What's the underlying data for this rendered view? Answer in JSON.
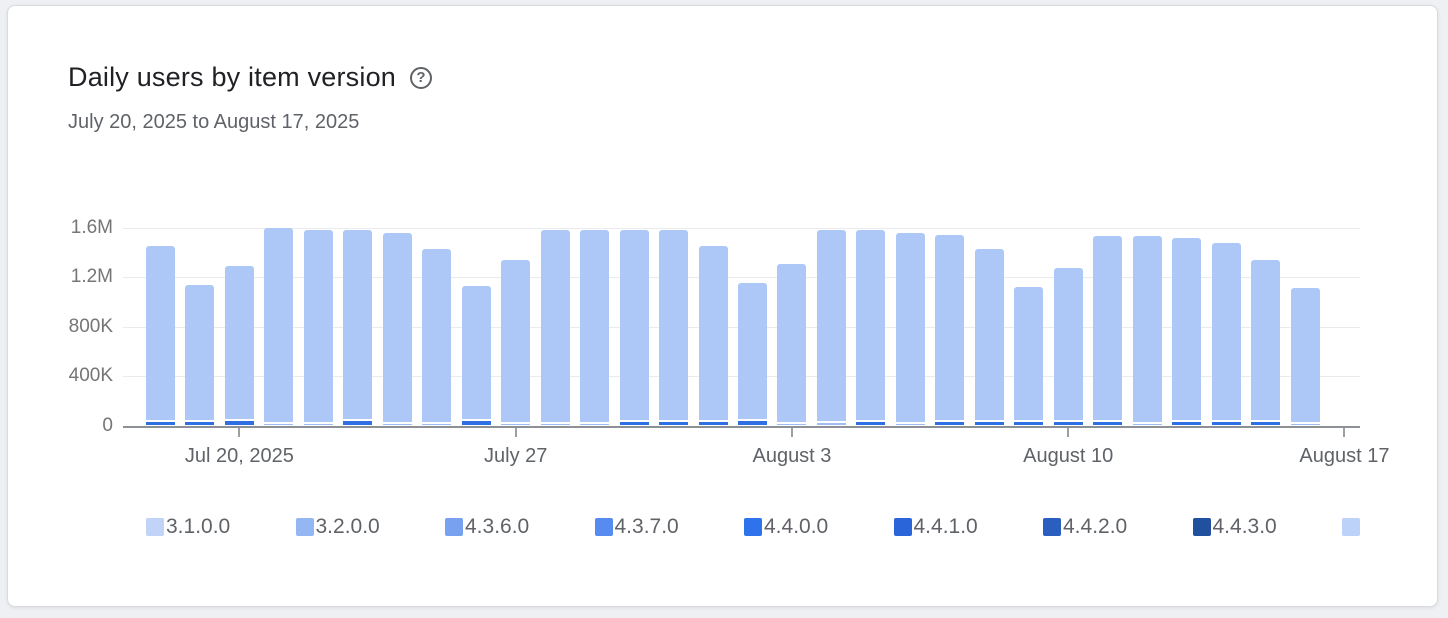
{
  "header": {
    "title": "Daily users by item version",
    "help_icon": "?",
    "subtitle": "July 20, 2025 to August 17, 2025"
  },
  "chart_data": {
    "type": "bar",
    "stacked": true,
    "title": "Daily users by item version",
    "subtitle": "July 20, 2025 to August 17, 2025",
    "ylabel": "",
    "xlabel": "",
    "ylim": [
      0,
      1600000
    ],
    "grid": true,
    "y_ticks": [
      {
        "label": "1.6M",
        "value": 1600000
      },
      {
        "label": "1.2M",
        "value": 1200000
      },
      {
        "label": "800K",
        "value": 800000
      },
      {
        "label": "400K",
        "value": 400000
      },
      {
        "label": "0",
        "value": 0
      }
    ],
    "x_ticks": [
      {
        "label": "Jul 20, 2025",
        "day_index": 2
      },
      {
        "label": "July 27",
        "day_index": 9
      },
      {
        "label": "August 3",
        "day_index": 16
      },
      {
        "label": "August 10",
        "day_index": 23
      },
      {
        "label": "August 17",
        "day_index": 30
      }
    ],
    "legend_position": "bottom",
    "legend": [
      {
        "label": "3.1.0.0",
        "color": "#c1d4f8"
      },
      {
        "label": "3.2.0.0",
        "color": "#94b7f4"
      },
      {
        "label": "4.3.6.0",
        "color": "#78a2f0"
      },
      {
        "label": "4.3.7.0",
        "color": "#568cf0"
      },
      {
        "label": "4.4.0.0",
        "color": "#2e73eb"
      },
      {
        "label": "4.4.1.0",
        "color": "#2a66d9"
      },
      {
        "label": "4.4.2.0",
        "color": "#2a5fc0"
      },
      {
        "label": "4.4.3.0",
        "color": "#21509f"
      },
      {
        "label": "",
        "color": "#bcd2f8"
      }
    ],
    "series_note": "Each bar = total daily users; dominant top segment is the light-blue current version, thin bottom segment is a minor version",
    "main_segment_color": "#adc8f7",
    "accent_colors": {
      "bright": "#2e6fe3",
      "light": "#9cbef5"
    },
    "bars": [
      {
        "total": 1450000,
        "accent": "bright",
        "accent_value": 30000
      },
      {
        "total": 1140000,
        "accent": "bright",
        "accent_value": 30000
      },
      {
        "total": 1290000,
        "accent": "bright",
        "accent_value": 35000
      },
      {
        "total": 1600000,
        "accent": "light",
        "accent_value": 16000
      },
      {
        "total": 1580000,
        "accent": "light",
        "accent_value": 16000
      },
      {
        "total": 1580000,
        "accent": "bright",
        "accent_value": 35000
      },
      {
        "total": 1560000,
        "accent": "light",
        "accent_value": 12000
      },
      {
        "total": 1430000,
        "accent": "light",
        "accent_value": 14000
      },
      {
        "total": 1130000,
        "accent": "bright",
        "accent_value": 33000
      },
      {
        "total": 1340000,
        "accent": "light",
        "accent_value": 14000
      },
      {
        "total": 1580000,
        "accent": "light",
        "accent_value": 16000
      },
      {
        "total": 1580000,
        "accent": "light",
        "accent_value": 12000
      },
      {
        "total": 1580000,
        "accent": "bright",
        "accent_value": 25000
      },
      {
        "total": 1580000,
        "accent": "bright",
        "accent_value": 28000
      },
      {
        "total": 1450000,
        "accent": "bright",
        "accent_value": 32000
      },
      {
        "total": 1150000,
        "accent": "bright",
        "accent_value": 36000
      },
      {
        "total": 1310000,
        "accent": "light",
        "accent_value": 16000
      },
      {
        "total": 1580000,
        "accent": "light",
        "accent_value": 18000
      },
      {
        "total": 1580000,
        "accent": "bright",
        "accent_value": 32000
      },
      {
        "total": 1560000,
        "accent": "light",
        "accent_value": 12000
      },
      {
        "total": 1540000,
        "accent": "bright",
        "accent_value": 32000
      },
      {
        "total": 1430000,
        "accent": "bright",
        "accent_value": 32000
      },
      {
        "total": 1120000,
        "accent": "bright",
        "accent_value": 30000
      },
      {
        "total": 1270000,
        "accent": "bright",
        "accent_value": 30000
      },
      {
        "total": 1530000,
        "accent": "bright",
        "accent_value": 28000
      },
      {
        "total": 1530000,
        "accent": "light",
        "accent_value": 16000
      },
      {
        "total": 1520000,
        "accent": "bright",
        "accent_value": 30000
      },
      {
        "total": 1480000,
        "accent": "bright",
        "accent_value": 28000
      },
      {
        "total": 1340000,
        "accent": "bright",
        "accent_value": 28000
      },
      {
        "total": 1110000,
        "accent": "light",
        "accent_value": 12000
      }
    ]
  },
  "layout_colors": {
    "card_bg": "#ffffff",
    "page_bg": "#eef0f3",
    "axis": "#8d9196",
    "gridline": "#e9ebee",
    "text_primary": "#202124",
    "text_secondary": "#5f6368"
  }
}
